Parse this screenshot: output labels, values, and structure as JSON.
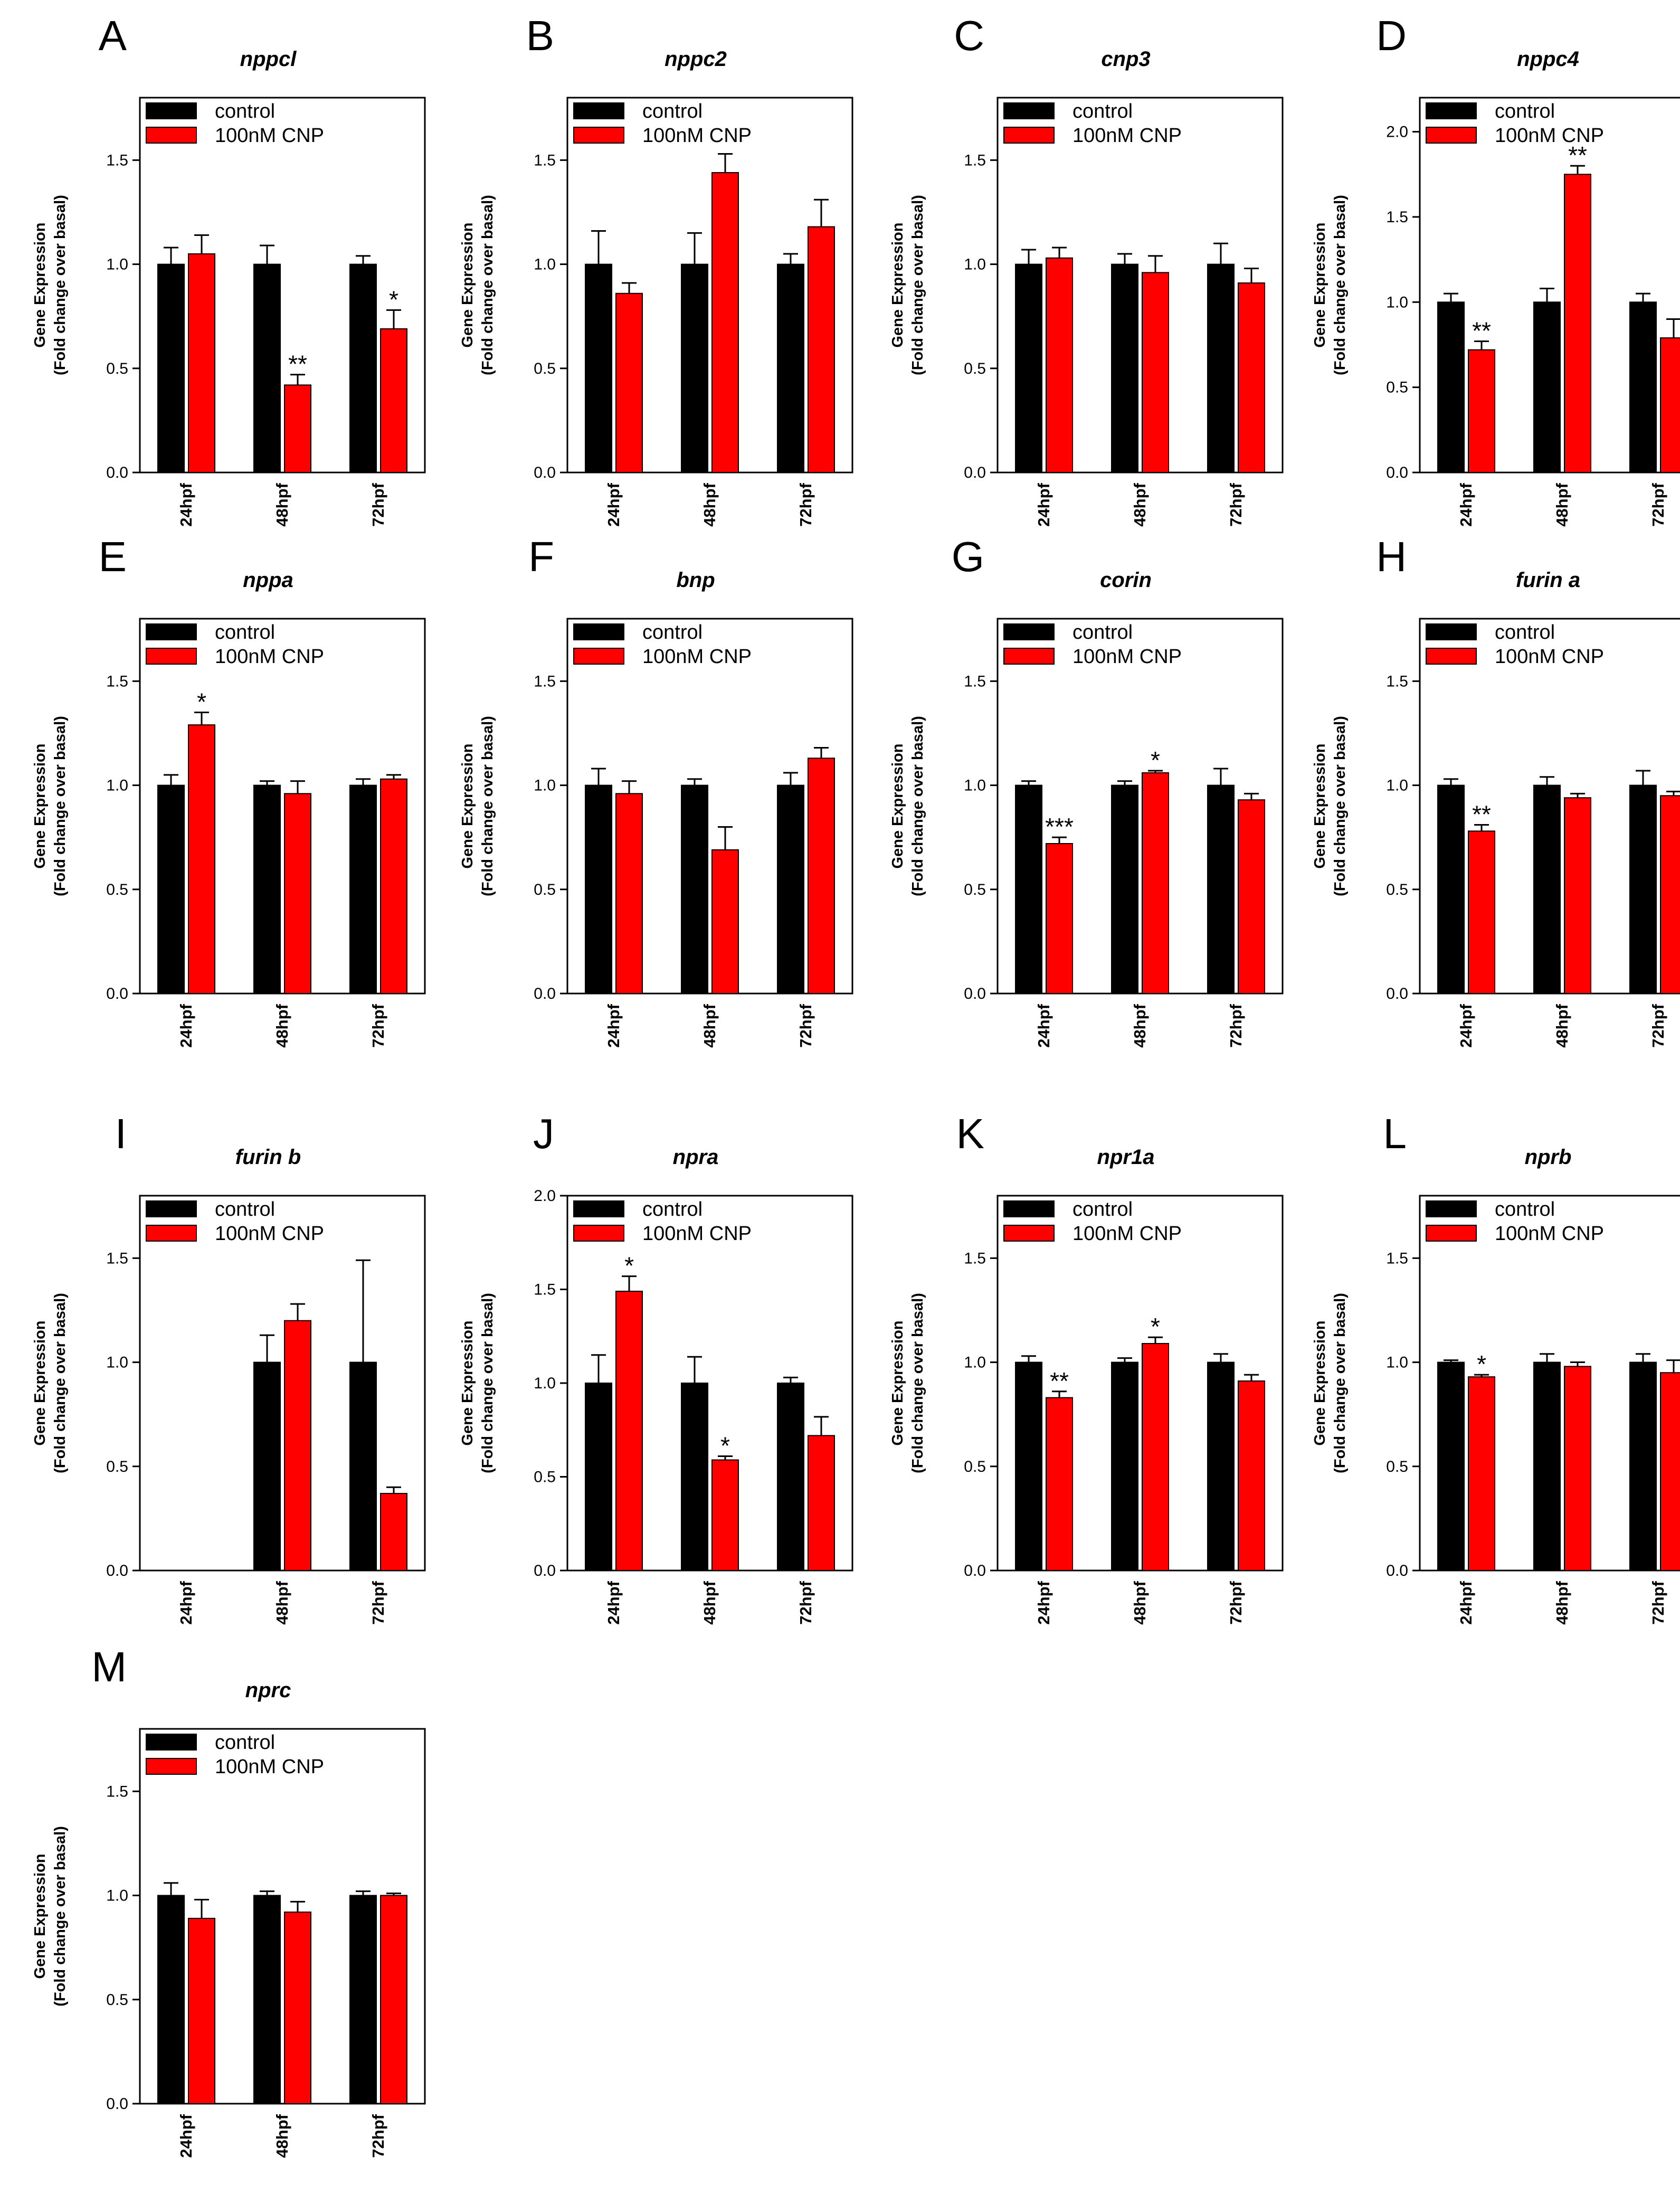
{
  "colors": {
    "control": "#000000",
    "cnp": "#ff0000",
    "axis": "#000000"
  },
  "chart_data": [
    {
      "letter": "A",
      "title": "nppcl",
      "type": "bar",
      "categories": [
        "24hpf",
        "48hpf",
        "72hpf"
      ],
      "ylim": [
        0,
        1.8
      ],
      "yticks": [
        "0.0",
        "0.5",
        "1.0",
        "1.5"
      ],
      "ylabel": [
        "Gene Expression",
        "(Fold change over basal)"
      ],
      "legend": [
        "control",
        "100nM CNP"
      ],
      "series": [
        {
          "name": "control",
          "values": [
            1.0,
            1.0,
            1.0
          ],
          "errors": [
            0.08,
            0.09,
            0.04
          ]
        },
        {
          "name": "100nM CNP",
          "values": [
            1.05,
            0.42,
            0.69
          ],
          "errors": [
            0.09,
            0.05,
            0.09
          ]
        }
      ],
      "annotations": [
        {
          "category": 1,
          "text": "**"
        },
        {
          "category": 2,
          "text": "*"
        }
      ]
    },
    {
      "letter": "B",
      "title": "nppc2",
      "type": "bar",
      "categories": [
        "24hpf",
        "48hpf",
        "72hpf"
      ],
      "ylim": [
        0,
        1.8
      ],
      "yticks": [
        "0.0",
        "0.5",
        "1.0",
        "1.5"
      ],
      "ylabel": [
        "Gene Expression",
        "(Fold change over basal)"
      ],
      "legend": [
        "control",
        "100nM CNP"
      ],
      "series": [
        {
          "name": "control",
          "values": [
            1.0,
            1.0,
            1.0
          ],
          "errors": [
            0.16,
            0.15,
            0.05
          ]
        },
        {
          "name": "100nM CNP",
          "values": [
            0.86,
            1.44,
            1.18
          ],
          "errors": [
            0.05,
            0.09,
            0.13
          ]
        }
      ],
      "annotations": []
    },
    {
      "letter": "C",
      "title": "cnp3",
      "type": "bar",
      "categories": [
        "24hpf",
        "48hpf",
        "72hpf"
      ],
      "ylim": [
        0,
        1.8
      ],
      "yticks": [
        "0.0",
        "0.5",
        "1.0",
        "1.5"
      ],
      "ylabel": [
        "Gene Expression",
        "(Fold change over basal)"
      ],
      "legend": [
        "control",
        "100nM CNP"
      ],
      "series": [
        {
          "name": "control",
          "values": [
            1.0,
            1.0,
            1.0
          ],
          "errors": [
            0.07,
            0.05,
            0.1
          ]
        },
        {
          "name": "100nM CNP",
          "values": [
            1.03,
            0.96,
            0.91
          ],
          "errors": [
            0.05,
            0.08,
            0.07
          ]
        }
      ],
      "annotations": []
    },
    {
      "letter": "D",
      "title": "nppc4",
      "type": "bar",
      "categories": [
        "24hpf",
        "48hpf",
        "72hpf"
      ],
      "ylim": [
        0,
        2.2
      ],
      "yticks": [
        "0.0",
        "0.5",
        "1.0",
        "1.5",
        "2.0"
      ],
      "ylabel": [
        "Gene Expression",
        "(Fold change over basal)"
      ],
      "legend": [
        "control",
        "100nM CNP"
      ],
      "series": [
        {
          "name": "control",
          "values": [
            1.0,
            1.0,
            1.0
          ],
          "errors": [
            0.05,
            0.08,
            0.05
          ]
        },
        {
          "name": "100nM CNP",
          "values": [
            0.72,
            1.75,
            0.79
          ],
          "errors": [
            0.05,
            0.05,
            0.11
          ]
        }
      ],
      "annotations": [
        {
          "category": 0,
          "text": "**"
        },
        {
          "category": 1,
          "text": "**"
        }
      ]
    },
    {
      "letter": "E",
      "title": "nppa",
      "type": "bar",
      "categories": [
        "24hpf",
        "48hpf",
        "72hpf"
      ],
      "ylim": [
        0,
        1.8
      ],
      "yticks": [
        "0.0",
        "0.5",
        "1.0",
        "1.5"
      ],
      "ylabel": [
        "Gene Expression",
        "(Fold change over basal)"
      ],
      "legend": [
        "control",
        "100nM CNP"
      ],
      "series": [
        {
          "name": "control",
          "values": [
            1.0,
            1.0,
            1.0
          ],
          "errors": [
            0.05,
            0.02,
            0.03
          ]
        },
        {
          "name": "100nM CNP",
          "values": [
            1.29,
            0.96,
            1.03
          ],
          "errors": [
            0.06,
            0.06,
            0.02
          ]
        }
      ],
      "annotations": [
        {
          "category": 0,
          "text": "*"
        }
      ]
    },
    {
      "letter": "F",
      "title": "bnp",
      "type": "bar",
      "categories": [
        "24hpf",
        "48hpf",
        "72hpf"
      ],
      "ylim": [
        0,
        1.8
      ],
      "yticks": [
        "0.0",
        "0.5",
        "1.0",
        "1.5"
      ],
      "ylabel": [
        "Gene Expression",
        "(Fold change over basal)"
      ],
      "legend": [
        "control",
        "100nM CNP"
      ],
      "series": [
        {
          "name": "control",
          "values": [
            1.0,
            1.0,
            1.0
          ],
          "errors": [
            0.08,
            0.03,
            0.06
          ]
        },
        {
          "name": "100nM CNP",
          "values": [
            0.96,
            0.69,
            1.13
          ],
          "errors": [
            0.06,
            0.11,
            0.05
          ]
        }
      ],
      "annotations": []
    },
    {
      "letter": "G",
      "title": "corin",
      "type": "bar",
      "categories": [
        "24hpf",
        "48hpf",
        "72hpf"
      ],
      "ylim": [
        0,
        1.8
      ],
      "yticks": [
        "0.0",
        "0.5",
        "1.0",
        "1.5"
      ],
      "ylabel": [
        "Gene Expression",
        "(Fold change over basal)"
      ],
      "legend": [
        "control",
        "100nM CNP"
      ],
      "series": [
        {
          "name": "control",
          "values": [
            1.0,
            1.0,
            1.0
          ],
          "errors": [
            0.02,
            0.02,
            0.08
          ]
        },
        {
          "name": "100nM CNP",
          "values": [
            0.72,
            1.06,
            0.93
          ],
          "errors": [
            0.03,
            0.01,
            0.03
          ]
        }
      ],
      "annotations": [
        {
          "category": 0,
          "text": "***"
        },
        {
          "category": 1,
          "text": "*"
        }
      ]
    },
    {
      "letter": "H",
      "title": "furin a",
      "type": "bar",
      "categories": [
        "24hpf",
        "48hpf",
        "72hpf"
      ],
      "ylim": [
        0,
        1.8
      ],
      "yticks": [
        "0.0",
        "0.5",
        "1.0",
        "1.5"
      ],
      "ylabel": [
        "Gene Expression",
        "(Fold change over basal)"
      ],
      "legend": [
        "control",
        "100nM CNP"
      ],
      "series": [
        {
          "name": "control",
          "values": [
            1.0,
            1.0,
            1.0
          ],
          "errors": [
            0.03,
            0.04,
            0.07
          ]
        },
        {
          "name": "100nM CNP",
          "values": [
            0.78,
            0.94,
            0.95
          ],
          "errors": [
            0.03,
            0.02,
            0.02
          ]
        }
      ],
      "annotations": [
        {
          "category": 0,
          "text": "**"
        }
      ]
    },
    {
      "letter": "I",
      "title": "furin b",
      "type": "bar",
      "categories": [
        "24hpf",
        "48hpf",
        "72hpf"
      ],
      "ylim": [
        0,
        1.8
      ],
      "yticks": [
        "0.0",
        "0.5",
        "1.0",
        "1.5"
      ],
      "ylabel": [
        "Gene Expression",
        "(Fold change over basal)"
      ],
      "legend": [
        "control",
        "100nM CNP"
      ],
      "series": [
        {
          "name": "control",
          "values": [
            0,
            1.0,
            1.0
          ],
          "errors": [
            0,
            0.13,
            0.49
          ]
        },
        {
          "name": "100nM CNP",
          "values": [
            0,
            1.2,
            0.37
          ],
          "errors": [
            0,
            0.08,
            0.03
          ]
        }
      ],
      "annotations": []
    },
    {
      "letter": "J",
      "title": "npra",
      "type": "bar",
      "categories": [
        "24hpf",
        "48hpf",
        "72hpf"
      ],
      "ylim": [
        0,
        2.0
      ],
      "yticks": [
        "0.0",
        "0.5",
        "1.0",
        "1.5",
        "2.0"
      ],
      "ylabel": [
        "Gene Expression",
        "(Fold change over basal)"
      ],
      "legend": [
        "control",
        "100nM CNP"
      ],
      "series": [
        {
          "name": "control",
          "values": [
            1.0,
            1.0,
            1.0
          ],
          "errors": [
            0.15,
            0.14,
            0.03
          ]
        },
        {
          "name": "100nM CNP",
          "values": [
            1.49,
            0.59,
            0.72
          ],
          "errors": [
            0.08,
            0.02,
            0.1
          ]
        }
      ],
      "annotations": [
        {
          "category": 0,
          "text": "*"
        },
        {
          "category": 1,
          "text": "*"
        }
      ]
    },
    {
      "letter": "K",
      "title": "npr1a",
      "type": "bar",
      "categories": [
        "24hpf",
        "48hpf",
        "72hpf"
      ],
      "ylim": [
        0,
        1.8
      ],
      "yticks": [
        "0.0",
        "0.5",
        "1.0",
        "1.5"
      ],
      "ylabel": [
        "Gene Expression",
        "(Fold change over basal)"
      ],
      "legend": [
        "control",
        "100nM CNP"
      ],
      "series": [
        {
          "name": "control",
          "values": [
            1.0,
            1.0,
            1.0
          ],
          "errors": [
            0.03,
            0.02,
            0.04
          ]
        },
        {
          "name": "100nM CNP",
          "values": [
            0.83,
            1.09,
            0.91
          ],
          "errors": [
            0.03,
            0.03,
            0.03
          ]
        }
      ],
      "annotations": [
        {
          "category": 0,
          "text": "**"
        },
        {
          "category": 1,
          "text": "*"
        }
      ]
    },
    {
      "letter": "L",
      "title": "nprb",
      "type": "bar",
      "categories": [
        "24hpf",
        "48hpf",
        "72hpf"
      ],
      "ylim": [
        0,
        1.8
      ],
      "yticks": [
        "0.0",
        "0.5",
        "1.0",
        "1.5"
      ],
      "ylabel": [
        "Gene Expression",
        "(Fold change over basal)"
      ],
      "legend": [
        "control",
        "100nM CNP"
      ],
      "series": [
        {
          "name": "control",
          "values": [
            1.0,
            1.0,
            1.0
          ],
          "errors": [
            0.01,
            0.04,
            0.04
          ]
        },
        {
          "name": "100nM CNP",
          "values": [
            0.93,
            0.98,
            0.95
          ],
          "errors": [
            0.01,
            0.02,
            0.06
          ]
        }
      ],
      "annotations": [
        {
          "category": 0,
          "text": "*"
        }
      ]
    },
    {
      "letter": "M",
      "title": "nprc",
      "type": "bar",
      "categories": [
        "24hpf",
        "48hpf",
        "72hpf"
      ],
      "ylim": [
        0,
        1.8
      ],
      "yticks": [
        "0.0",
        "0.5",
        "1.0",
        "1.5"
      ],
      "ylabel": [
        "Gene Expression",
        "(Fold change over basal)"
      ],
      "legend": [
        "control",
        "100nM CNP"
      ],
      "series": [
        {
          "name": "control",
          "values": [
            1.0,
            1.0,
            1.0
          ],
          "errors": [
            0.06,
            0.02,
            0.02
          ]
        },
        {
          "name": "100nM CNP",
          "values": [
            0.89,
            0.92,
            1.0
          ],
          "errors": [
            0.09,
            0.05,
            0.01
          ]
        }
      ],
      "annotations": []
    }
  ]
}
